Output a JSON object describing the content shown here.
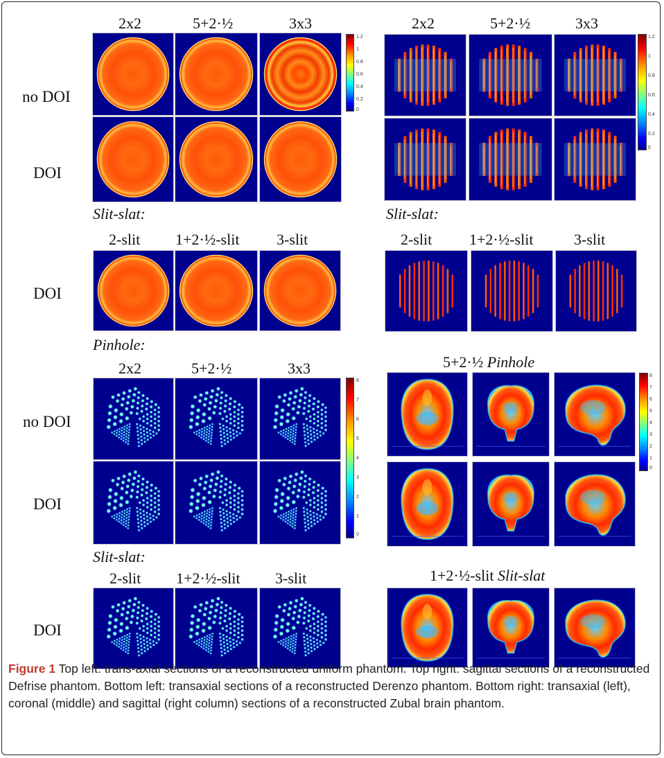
{
  "uniform": {
    "headers": [
      "2x2",
      "5+2·½",
      "3x3"
    ],
    "rows": [
      "no DOI",
      "DOI"
    ],
    "colorbar_ticks": [
      "1.2",
      "1",
      "0.8",
      "0.6",
      "0.4",
      "0.2",
      "0"
    ]
  },
  "defrise": {
    "headers": [
      "2x2",
      "5+2·½",
      "3x3"
    ],
    "colorbar_ticks": [
      "1.2",
      "1",
      "0.8",
      "0.6",
      "0.4",
      "0.2",
      "0"
    ]
  },
  "slitslat_uniform": {
    "section_label": "Slit-slat:",
    "headers": [
      "2-slit",
      "1+2·½-slit",
      "3-slit"
    ],
    "rows": [
      "DOI"
    ]
  },
  "slitslat_defrise": {
    "section_label": "Slit-slat:",
    "headers": [
      "2-slit",
      "1+2·½-slit",
      "3-slit"
    ]
  },
  "pinhole_derenzo": {
    "section_label": "Pinhole:",
    "headers": [
      "2x2",
      "5+2·½",
      "3x3"
    ],
    "rows": [
      "no DOI",
      "DOI"
    ],
    "colorbar_ticks": [
      "8",
      "7",
      "6",
      "5",
      "4",
      "3",
      "2",
      "1",
      "0"
    ]
  },
  "zubal_pinhole": {
    "title_plain": "5+2·½ ",
    "title_italic": "Pinhole",
    "colorbar_ticks": [
      "8",
      "7",
      "6",
      "5",
      "4",
      "3",
      "2",
      "1",
      "0"
    ]
  },
  "slitslat_derenzo": {
    "section_label": "Slit-slat:",
    "headers": [
      "2-slit",
      "1+2·½-slit",
      "3-slit"
    ],
    "rows": [
      "DOI"
    ]
  },
  "zubal_slitslat": {
    "title_plain": "1+2·½-slit ",
    "title_italic": "Slit-slat"
  },
  "caption": {
    "label": "Figure 1",
    "text": " Top left: trans-axial sections of a reconstructed uniform phantom. Top right: sagittal sections of a reconstructed Defrise phantom. Bottom left: transaxial sections of a reconstructed Derenzo phantom. Bottom right: transaxial (left), coronal (middle) and sagittal (right column) sections of a reconstructed Zubal brain phantom."
  },
  "colors": {
    "background": "#00008f",
    "caption_label": "#c0392b"
  }
}
